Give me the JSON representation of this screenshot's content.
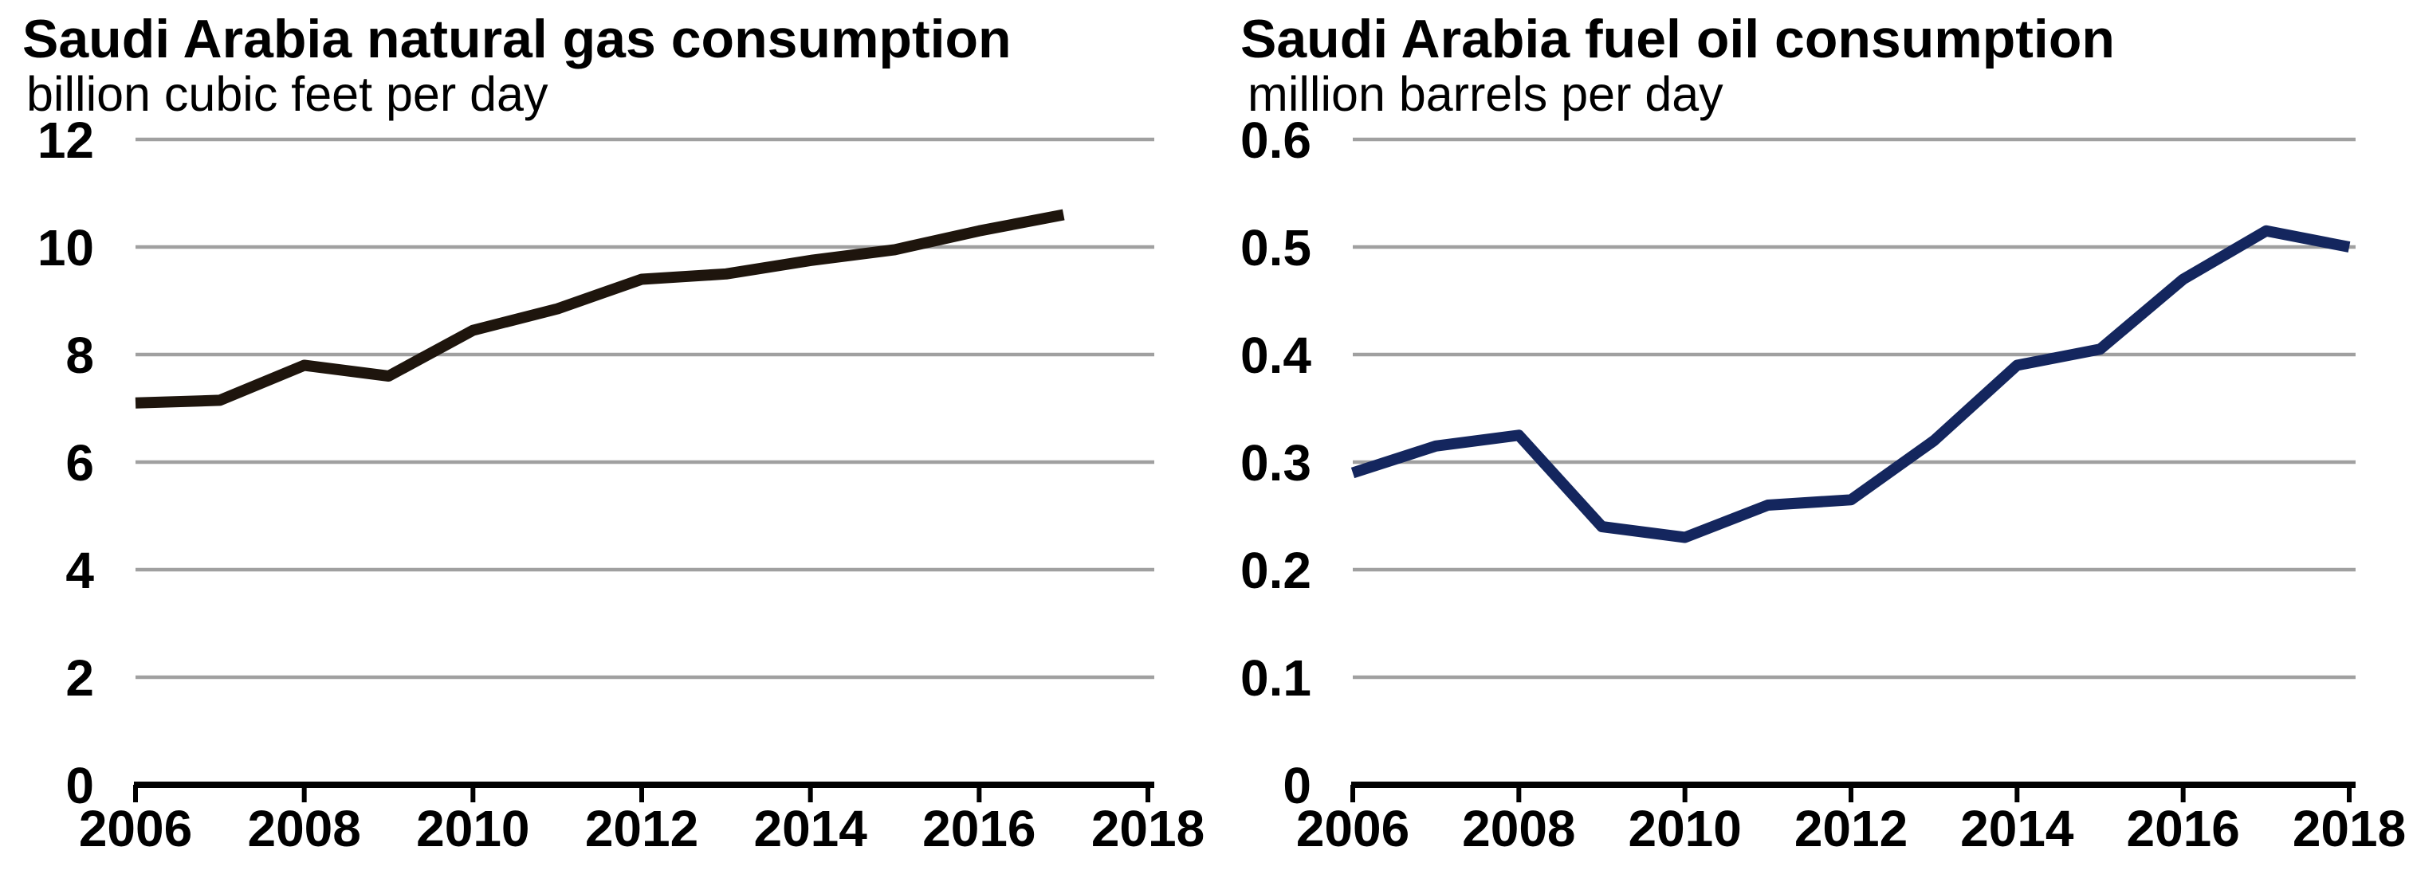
{
  "figure": {
    "background_color": "#ffffff",
    "gridline_color": "#a0a0a0",
    "axis_color": "#000000",
    "text_color": "#000000"
  },
  "chart_data": [
    {
      "type": "line",
      "title": "Saudi Arabia natural gas consumption",
      "subtitle": "billion cubic feet per day",
      "line_color": "#1e150d",
      "x": [
        2006,
        2007,
        2008,
        2009,
        2010,
        2011,
        2012,
        2013,
        2014,
        2015,
        2016,
        2017
      ],
      "values": [
        7.1,
        7.15,
        7.8,
        7.6,
        8.45,
        8.85,
        9.4,
        9.5,
        9.75,
        9.95,
        10.3,
        10.6
      ],
      "xlim": [
        2006,
        2018
      ],
      "x_tick_step": 2,
      "x_tick_labels": [
        "2006",
        "2008",
        "2010",
        "2012",
        "2014",
        "2016",
        "2018"
      ],
      "ylim": [
        0,
        12
      ],
      "y_tick_step": 2,
      "y_decimals": 0,
      "y_tick_labels": [
        "0",
        "2",
        "4",
        "6",
        "8",
        "10",
        "12"
      ],
      "grid": true,
      "legend": "none"
    },
    {
      "type": "line",
      "title": "Saudi Arabia fuel oil consumption",
      "subtitle": "million barrels per day",
      "line_color": "#14265e",
      "x": [
        2006,
        2007,
        2008,
        2009,
        2010,
        2011,
        2012,
        2013,
        2014,
        2015,
        2016,
        2017,
        2018
      ],
      "values": [
        0.29,
        0.315,
        0.325,
        0.24,
        0.23,
        0.26,
        0.265,
        0.32,
        0.39,
        0.405,
        0.47,
        0.515,
        0.5
      ],
      "xlim": [
        2006,
        2018
      ],
      "x_tick_step": 2,
      "x_tick_labels": [
        "2006",
        "2008",
        "2010",
        "2012",
        "2014",
        "2016",
        "2018"
      ],
      "ylim": [
        0,
        0.6
      ],
      "y_tick_step": 0.1,
      "y_decimals": 1,
      "y_tick_labels": [
        "0",
        "0.1",
        "0.2",
        "0.3",
        "0.4",
        "0.5",
        "0.6"
      ],
      "grid": true,
      "legend": "none"
    }
  ]
}
